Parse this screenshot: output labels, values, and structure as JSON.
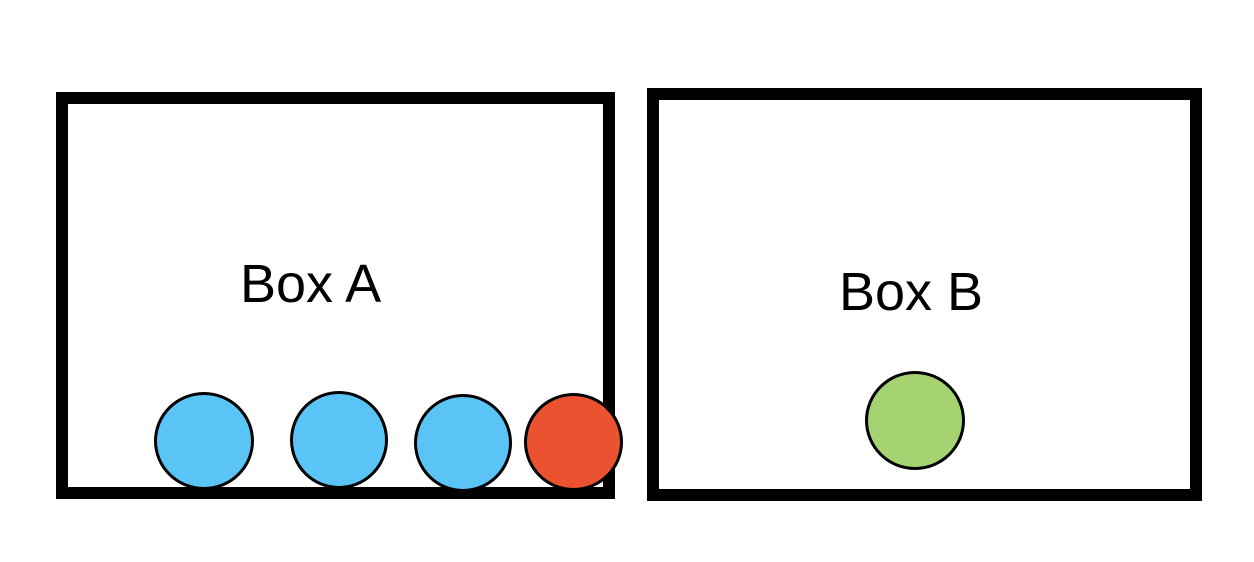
{
  "boxes": [
    {
      "label": "Box A",
      "balls": [
        {
          "color": "#5bc4f6"
        },
        {
          "color": "#5bc4f6"
        },
        {
          "color": "#5bc4f6"
        },
        {
          "color": "#eb5230"
        }
      ]
    },
    {
      "label": "Box B",
      "balls": [
        {
          "color": "#a5d371"
        }
      ]
    }
  ]
}
